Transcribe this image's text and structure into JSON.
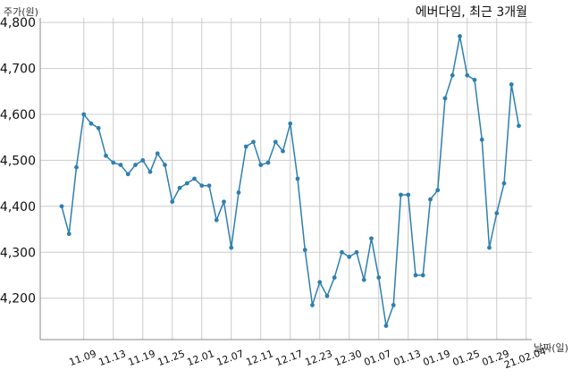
{
  "chart_data": {
    "type": "line",
    "title": "에버다임, 최근 3개월",
    "xlabel": "날짜(일)",
    "ylabel": "주가(원)",
    "ylim": [
      4110,
      4810
    ],
    "yticks": [
      4200,
      4300,
      4400,
      4500,
      4600,
      4700,
      4800
    ],
    "ytick_labels": [
      "4,200",
      "4,300",
      "4,400",
      "4,500",
      "4,600",
      "4,700",
      "4,800"
    ],
    "xtick_labels": [
      "11.09",
      "11.13",
      "11.19",
      "11.25",
      "12.01",
      "12.07",
      "12.11",
      "12.17",
      "12.23",
      "12.30",
      "01.07",
      "01.13",
      "01.19",
      "01.25",
      "01.29",
      "21.02.04"
    ],
    "xtick_positions": [
      3,
      7,
      11,
      15,
      19,
      23,
      27,
      31,
      35,
      39,
      43,
      47,
      51,
      55,
      59,
      63
    ],
    "grid": true,
    "series_color": "#2e7fb0",
    "series": [
      {
        "values": [
          4400,
          4340,
          4485,
          4600,
          4580,
          4570,
          4510,
          4495,
          4490,
          4470,
          4490,
          4500,
          4475,
          4515,
          4490,
          4410,
          4440,
          4450,
          4460,
          4445,
          4445,
          4370,
          4410,
          4310,
          4430,
          4530,
          4540,
          4490,
          4495,
          4540,
          4520,
          4580,
          4460,
          4305,
          4185,
          4235,
          4205,
          4245,
          4300,
          4290,
          4300,
          4240,
          4330,
          4245,
          4140,
          4185,
          4425,
          4425,
          4250,
          4250,
          4415,
          4435,
          4635,
          4685,
          4770,
          4685,
          4675,
          4545,
          4310,
          4385,
          4450,
          4665,
          4575
        ]
      }
    ]
  }
}
